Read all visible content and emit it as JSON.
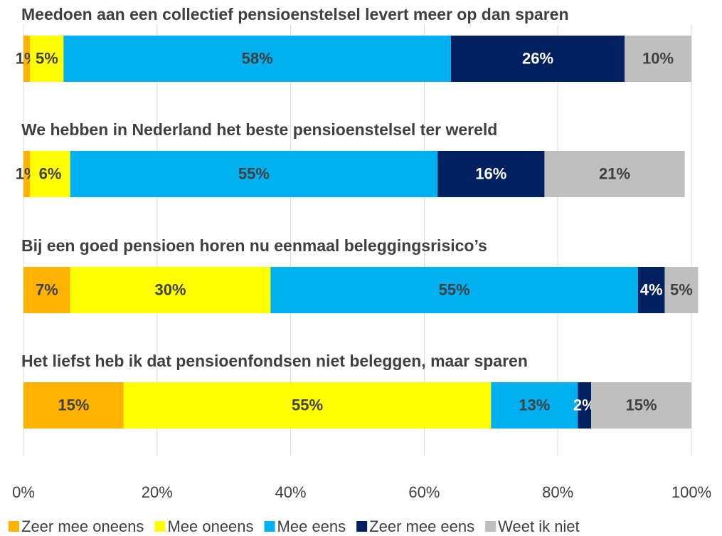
{
  "chart_data": {
    "type": "stacked_bar_horizontal",
    "categories": [
      "Meedoen aan een collectief pensioenstelsel levert meer op dan sparen",
      "We hebben in Nederland het beste pensioenstelsel ter wereld",
      "Bij een goed pensioen horen nu eenmaal beleggingsrisico’s",
      "Het liefst heb ik dat pensioenfondsen niet beleggen, maar sparen"
    ],
    "series": [
      {
        "name": "Zeer mee oneens",
        "color": "#FFB300",
        "label_color": "#404040",
        "values": [
          1,
          1,
          7,
          15
        ],
        "value_labels": [
          "1%",
          "1%",
          "7%",
          "15%"
        ]
      },
      {
        "name": "Mee oneens",
        "color": "#FFFF00",
        "label_color": "#404040",
        "values": [
          5,
          6,
          30,
          55
        ],
        "value_labels": [
          "5%",
          "6%",
          "30%",
          "55%"
        ]
      },
      {
        "name": "Mee eens",
        "color": "#00B0F0",
        "label_color": "#404040",
        "values": [
          58,
          55,
          55,
          13
        ],
        "value_labels": [
          "58%",
          "55%",
          "55%",
          "13%"
        ]
      },
      {
        "name": "Zeer mee eens",
        "color": "#002060",
        "label_color": "#FFFFFF",
        "values": [
          26,
          16,
          4,
          2
        ],
        "value_labels": [
          "26%",
          "16%",
          "4%",
          "2%"
        ]
      },
      {
        "name": "Weet ik niet",
        "color": "#BFBFBF",
        "label_color": "#404040",
        "values": [
          10,
          21,
          5,
          15
        ],
        "value_labels": [
          "10%",
          "21%",
          "5%",
          "15%"
        ]
      }
    ],
    "xlim": [
      0,
      100
    ],
    "xticks": [
      {
        "value": 0,
        "label": "0%"
      },
      {
        "value": 20,
        "label": "20%"
      },
      {
        "value": 40,
        "label": "40%"
      },
      {
        "value": 60,
        "label": "60%"
      },
      {
        "value": 80,
        "label": "80%"
      },
      {
        "value": 100,
        "label": "100%"
      }
    ],
    "grid": true,
    "legend": "bottom"
  }
}
